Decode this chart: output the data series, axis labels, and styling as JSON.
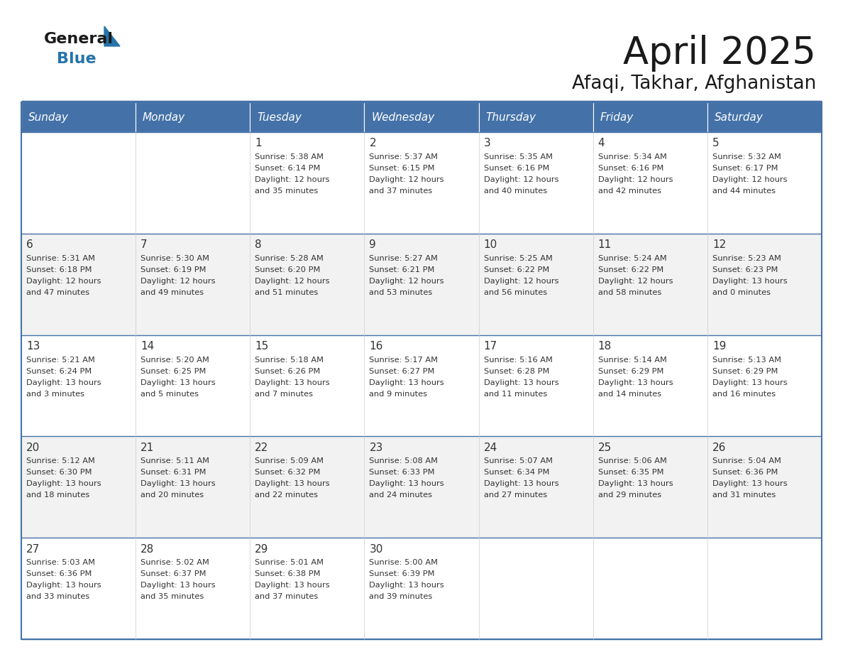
{
  "title": "April 2025",
  "subtitle": "Afaqi, Takhar, Afghanistan",
  "days_of_week": [
    "Sunday",
    "Monday",
    "Tuesday",
    "Wednesday",
    "Thursday",
    "Friday",
    "Saturday"
  ],
  "header_bg": "#4472a8",
  "header_text": "#ffffff",
  "cell_text": "#333333",
  "border_color": "#4472a8",
  "calendar": [
    [
      null,
      null,
      {
        "day": 1,
        "sunrise": "5:38 AM",
        "sunset": "6:14 PM",
        "daylight": "12 hours and 35 minutes"
      },
      {
        "day": 2,
        "sunrise": "5:37 AM",
        "sunset": "6:15 PM",
        "daylight": "12 hours and 37 minutes"
      },
      {
        "day": 3,
        "sunrise": "5:35 AM",
        "sunset": "6:16 PM",
        "daylight": "12 hours and 40 minutes"
      },
      {
        "day": 4,
        "sunrise": "5:34 AM",
        "sunset": "6:16 PM",
        "daylight": "12 hours and 42 minutes"
      },
      {
        "day": 5,
        "sunrise": "5:32 AM",
        "sunset": "6:17 PM",
        "daylight": "12 hours and 44 minutes"
      }
    ],
    [
      {
        "day": 6,
        "sunrise": "5:31 AM",
        "sunset": "6:18 PM",
        "daylight": "12 hours and 47 minutes"
      },
      {
        "day": 7,
        "sunrise": "5:30 AM",
        "sunset": "6:19 PM",
        "daylight": "12 hours and 49 minutes"
      },
      {
        "day": 8,
        "sunrise": "5:28 AM",
        "sunset": "6:20 PM",
        "daylight": "12 hours and 51 minutes"
      },
      {
        "day": 9,
        "sunrise": "5:27 AM",
        "sunset": "6:21 PM",
        "daylight": "12 hours and 53 minutes"
      },
      {
        "day": 10,
        "sunrise": "5:25 AM",
        "sunset": "6:22 PM",
        "daylight": "12 hours and 56 minutes"
      },
      {
        "day": 11,
        "sunrise": "5:24 AM",
        "sunset": "6:22 PM",
        "daylight": "12 hours and 58 minutes"
      },
      {
        "day": 12,
        "sunrise": "5:23 AM",
        "sunset": "6:23 PM",
        "daylight": "13 hours and 0 minutes"
      }
    ],
    [
      {
        "day": 13,
        "sunrise": "5:21 AM",
        "sunset": "6:24 PM",
        "daylight": "13 hours and 3 minutes"
      },
      {
        "day": 14,
        "sunrise": "5:20 AM",
        "sunset": "6:25 PM",
        "daylight": "13 hours and 5 minutes"
      },
      {
        "day": 15,
        "sunrise": "5:18 AM",
        "sunset": "6:26 PM",
        "daylight": "13 hours and 7 minutes"
      },
      {
        "day": 16,
        "sunrise": "5:17 AM",
        "sunset": "6:27 PM",
        "daylight": "13 hours and 9 minutes"
      },
      {
        "day": 17,
        "sunrise": "5:16 AM",
        "sunset": "6:28 PM",
        "daylight": "13 hours and 11 minutes"
      },
      {
        "day": 18,
        "sunrise": "5:14 AM",
        "sunset": "6:29 PM",
        "daylight": "13 hours and 14 minutes"
      },
      {
        "day": 19,
        "sunrise": "5:13 AM",
        "sunset": "6:29 PM",
        "daylight": "13 hours and 16 minutes"
      }
    ],
    [
      {
        "day": 20,
        "sunrise": "5:12 AM",
        "sunset": "6:30 PM",
        "daylight": "13 hours and 18 minutes"
      },
      {
        "day": 21,
        "sunrise": "5:11 AM",
        "sunset": "6:31 PM",
        "daylight": "13 hours and 20 minutes"
      },
      {
        "day": 22,
        "sunrise": "5:09 AM",
        "sunset": "6:32 PM",
        "daylight": "13 hours and 22 minutes"
      },
      {
        "day": 23,
        "sunrise": "5:08 AM",
        "sunset": "6:33 PM",
        "daylight": "13 hours and 24 minutes"
      },
      {
        "day": 24,
        "sunrise": "5:07 AM",
        "sunset": "6:34 PM",
        "daylight": "13 hours and 27 minutes"
      },
      {
        "day": 25,
        "sunrise": "5:06 AM",
        "sunset": "6:35 PM",
        "daylight": "13 hours and 29 minutes"
      },
      {
        "day": 26,
        "sunrise": "5:04 AM",
        "sunset": "6:36 PM",
        "daylight": "13 hours and 31 minutes"
      }
    ],
    [
      {
        "day": 27,
        "sunrise": "5:03 AM",
        "sunset": "6:36 PM",
        "daylight": "13 hours and 33 minutes"
      },
      {
        "day": 28,
        "sunrise": "5:02 AM",
        "sunset": "6:37 PM",
        "daylight": "13 hours and 35 minutes"
      },
      {
        "day": 29,
        "sunrise": "5:01 AM",
        "sunset": "6:38 PM",
        "daylight": "13 hours and 37 minutes"
      },
      {
        "day": 30,
        "sunrise": "5:00 AM",
        "sunset": "6:39 PM",
        "daylight": "13 hours and 39 minutes"
      },
      null,
      null,
      null
    ]
  ],
  "fig_width": 11.88,
  "fig_height": 9.18
}
